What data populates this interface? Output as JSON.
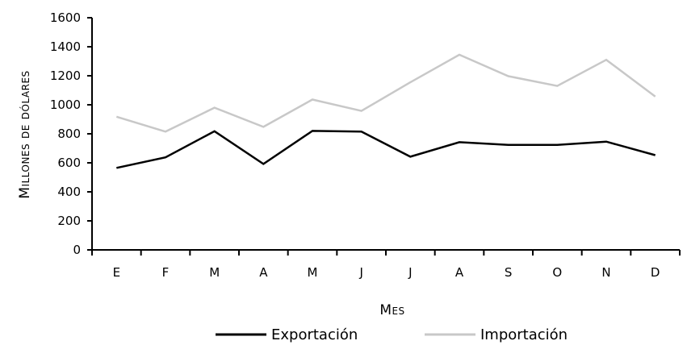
{
  "chart_data": {
    "type": "line",
    "categories": [
      "E",
      "F",
      "M",
      "A",
      "M",
      "J",
      "J",
      "A",
      "S",
      "O",
      "N",
      "D"
    ],
    "series": [
      {
        "name": "Exportación",
        "color": "#000000",
        "values": [
          565,
          638,
          818,
          592,
          820,
          815,
          642,
          742,
          724,
          724,
          746,
          653
        ]
      },
      {
        "name": "Importación",
        "color": "#c8c8c8",
        "values": [
          918,
          815,
          980,
          848,
          1036,
          958,
          1155,
          1345,
          1197,
          1130,
          1310,
          1057
        ]
      }
    ],
    "yticks": [
      "0",
      "200",
      "400",
      "600",
      "800",
      "1000",
      "1200",
      "1400",
      "1600"
    ],
    "ylim": [
      0,
      1600
    ],
    "xlabel": "Mes",
    "ylabel": "Millones de dólares",
    "grid": false,
    "legend": "bottom"
  }
}
